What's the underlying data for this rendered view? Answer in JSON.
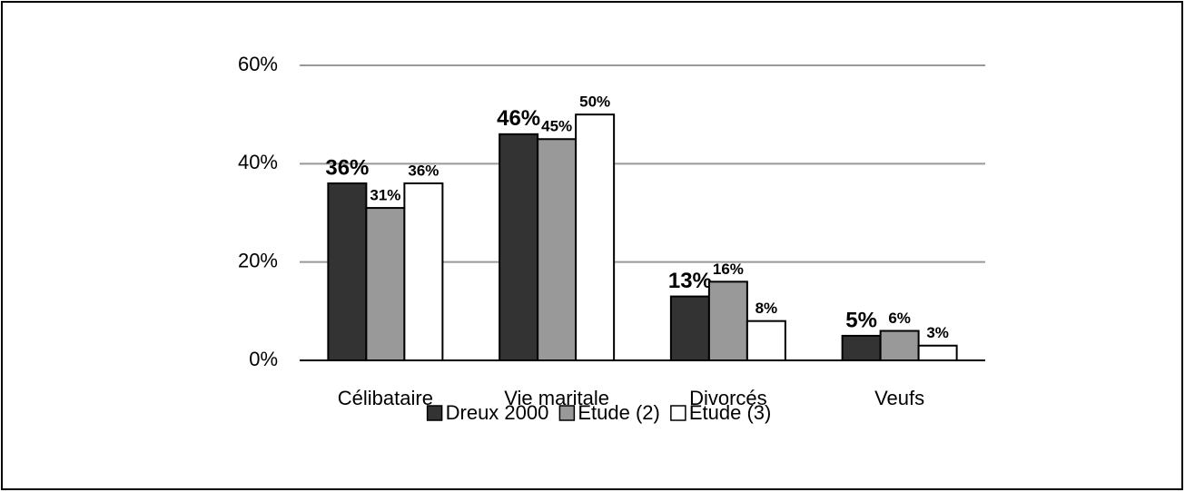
{
  "chart_data": {
    "type": "bar",
    "categories": [
      "Célibataire",
      "Vie maritale",
      "Divorcés",
      "Veufs"
    ],
    "series": [
      {
        "name": "Dreux 2000",
        "color": "#333333",
        "values": [
          36,
          46,
          13,
          5
        ],
        "value_labels": [
          "36%",
          "46%",
          "13%",
          "5%"
        ]
      },
      {
        "name": "Etude (2)",
        "color": "#999999",
        "values": [
          31,
          45,
          16,
          6
        ],
        "value_labels": [
          "31%",
          "45%",
          "16%",
          "6%"
        ]
      },
      {
        "name": "Etude (3)",
        "color": "#ffffff",
        "values": [
          36,
          50,
          8,
          3
        ],
        "value_labels": [
          "36%",
          "50%",
          "8%",
          "3%"
        ]
      }
    ],
    "ylim": [
      0,
      60
    ],
    "yticks": [
      {
        "value": 0,
        "label": "0%"
      },
      {
        "value": 20,
        "label": "20%"
      },
      {
        "value": 40,
        "label": "40%"
      },
      {
        "value": 60,
        "label": "60%"
      }
    ],
    "grid": true,
    "legend": "bottom"
  }
}
